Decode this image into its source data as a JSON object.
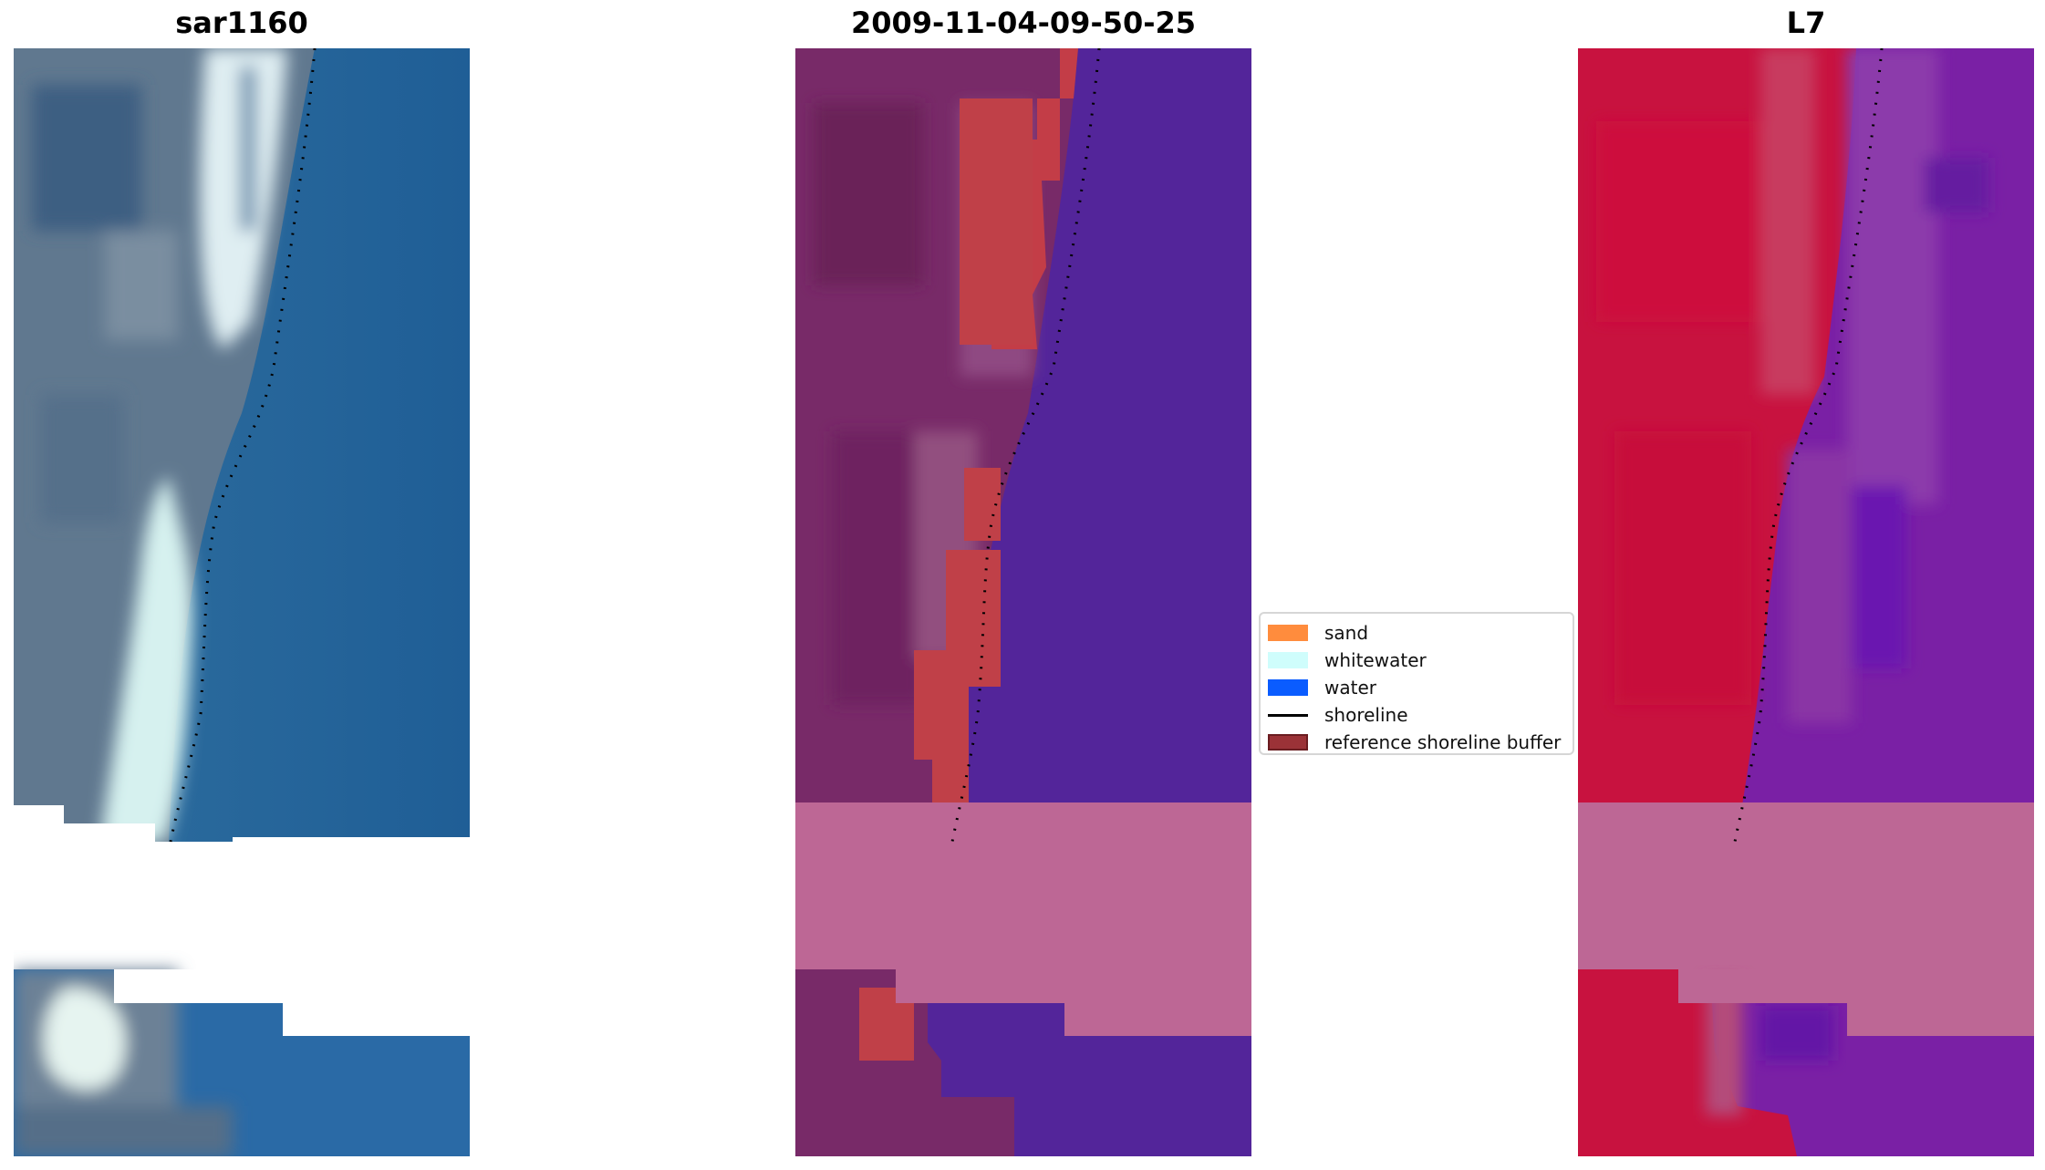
{
  "panels": [
    {
      "title": "sar1160",
      "type": "rgb"
    },
    {
      "title": "2009-11-04-09-50-25",
      "type": "classified"
    },
    {
      "title": "L7",
      "type": "falsecolor"
    }
  ],
  "legend": {
    "items": [
      {
        "label": "sand",
        "kind": "patch",
        "color": "#ff8c3d"
      },
      {
        "label": "whitewater",
        "kind": "patch",
        "color": "#cffdfc"
      },
      {
        "label": "water",
        "kind": "patch",
        "color": "#0a5cff"
      },
      {
        "label": "shoreline",
        "kind": "line",
        "color": "#000000"
      },
      {
        "label": "reference shoreline buffer",
        "kind": "patch",
        "color": "#9b3237",
        "edge": "#6a1c20"
      }
    ]
  },
  "colors": {
    "rgb_water": "#2a6ea8",
    "rgb_land": "#6a7e98",
    "rgb_surf": "#d8ecf2",
    "class_land": "#782a68",
    "class_water": "#53259a",
    "class_buffer": "#c04048",
    "nodata_overlay": "#bd6795",
    "fc_land": "#c8123f",
    "fc_water": "#7a20a5",
    "shoreline": "#000000"
  }
}
